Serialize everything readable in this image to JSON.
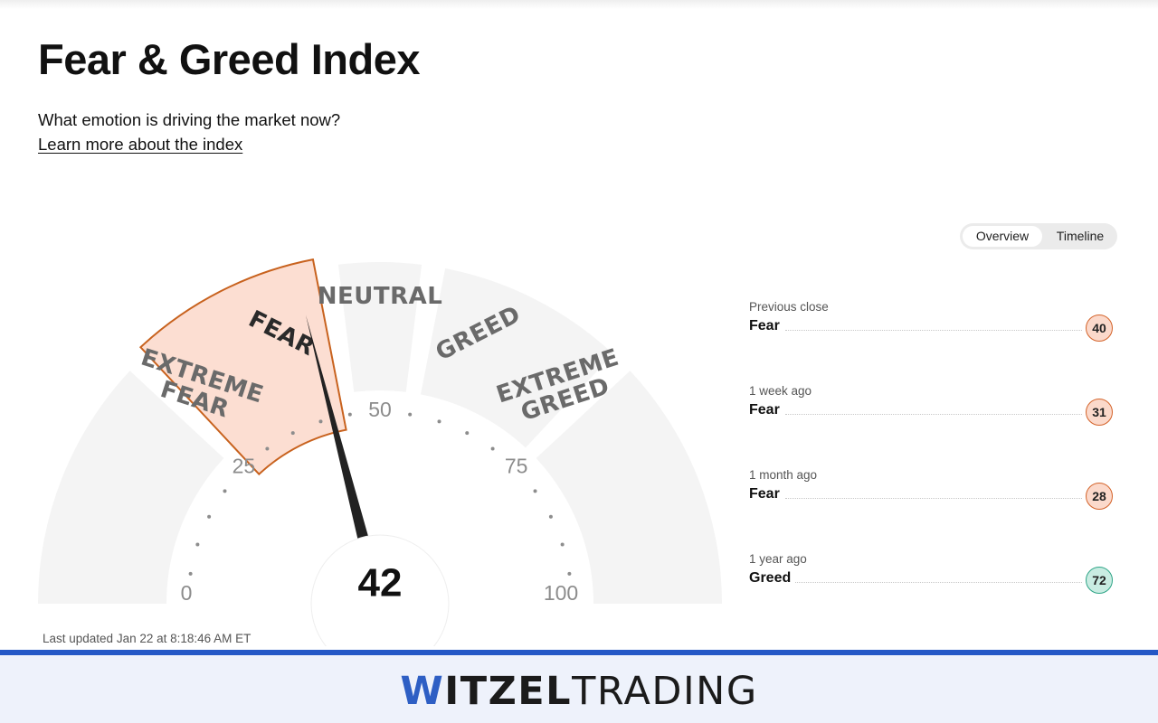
{
  "header": {
    "title": "Fear & Greed Index",
    "subtitle": "What emotion is driving the market now?",
    "learn_link": "Learn more about the index"
  },
  "view_toggle": {
    "options": [
      "Overview",
      "Timeline"
    ],
    "selected": "Overview"
  },
  "gauge": {
    "score": 42,
    "segments": [
      "EXTREME FEAR",
      "FEAR",
      "NEUTRAL",
      "GREED",
      "EXTREME GREED"
    ],
    "active_segment": "FEAR",
    "tick_labels": [
      "0",
      "25",
      "50",
      "75",
      "100"
    ],
    "colors": {
      "track": "#f4f4f4",
      "fear_fill": "#fcded2",
      "fear_stroke": "#c8621e",
      "needle": "#222222"
    }
  },
  "last_updated": "Last updated Jan 22 at 8:18:46 AM ET",
  "history": [
    {
      "period": "Previous close",
      "rating": "Fear",
      "value": "40",
      "tone": "fear"
    },
    {
      "period": "1 week ago",
      "rating": "Fear",
      "value": "31",
      "tone": "fear"
    },
    {
      "period": "1 month ago",
      "rating": "Fear",
      "value": "28",
      "tone": "fear"
    },
    {
      "period": "1 year ago",
      "rating": "Greed",
      "value": "72",
      "tone": "greed"
    }
  ],
  "footer": {
    "brand_w": "W",
    "brand_bold": "ITZEL",
    "brand_light": "TRADING",
    "accent_color": "#2458c6"
  }
}
